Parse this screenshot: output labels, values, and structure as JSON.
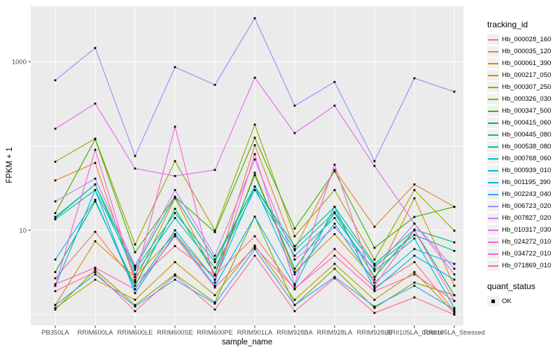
{
  "figure": {
    "background": "#FFFFFF",
    "panel_background": "#EBEBEB",
    "gridline_color": "#FFFFFF",
    "tick_text_color": "#4D4D4D",
    "tick_mark_color": "#333333",
    "point_color": "#000000"
  },
  "axes": {
    "x": {
      "label": "sample_name",
      "categories": [
        "PB350LA",
        "RRIM600LA",
        "RRIM600LE",
        "RRIM600SE",
        "RRIM600PE",
        "RRIM901LA",
        "RRIM928BA",
        "RRIM928LA",
        "RRIM928LE",
        "RRII105LA_Control",
        "RRII105LA_Stressed"
      ]
    },
    "y": {
      "label": "FPKM + 1",
      "scale": "log10",
      "tick_labels": [
        "10",
        "1000"
      ],
      "tick_values": [
        10,
        1000
      ],
      "gridline_values": [
        1,
        10,
        100,
        1000
      ]
    }
  },
  "legend": {
    "tracking_title": "tracking_id",
    "quant_title": "quant_status",
    "quant_items": [
      {
        "label": "OK",
        "shape": "square",
        "color": "#000000"
      }
    ]
  },
  "chart_data": {
    "type": "line",
    "xlabel": "sample_name",
    "ylabel": "FPKM + 1",
    "yscale": "log10",
    "ylim": [
      0.85,
      4500
    ],
    "yticks": [
      10,
      1000
    ],
    "grid": true,
    "legend_position": "right",
    "point_marker": {
      "shape": "square",
      "color": "#000000",
      "status_label": "OK"
    },
    "categories": [
      "PB350LA",
      "RRIM600LA",
      "RRIM600LE",
      "RRIM600SE",
      "RRIM600PE",
      "RRIM901LA",
      "RRIM928BA",
      "RRIM928LA",
      "RRIM928LE",
      "RRII105LA_Control",
      "RRII105LA_Stressed"
    ],
    "series": [
      {
        "name": "Hb_000028_160",
        "color": "#F8766D",
        "values": [
          2.7,
          9.6,
          2.4,
          6.5,
          2.9,
          8.5,
          2.0,
          6.0,
          2.1,
          4.2,
          1.1
        ]
      },
      {
        "name": "Hb_000035_120",
        "color": "#EA8331",
        "values": [
          39,
          63,
          2.5,
          24,
          3.0,
          102,
          6.0,
          52,
          11,
          35,
          19
        ]
      },
      {
        "name": "Hb_000061_390",
        "color": "#D89000",
        "values": [
          1.3,
          7.4,
          2.8,
          9.0,
          2.6,
          48,
          3.2,
          9.0,
          2.6,
          24,
          2.2
        ]
      },
      {
        "name": "Hb_000217_050",
        "color": "#C09B00",
        "values": [
          1.2,
          2.6,
          1.5,
          4.2,
          1.7,
          6.6,
          1.5,
          4.0,
          1.5,
          3.2,
          1.05
        ]
      },
      {
        "name": "Hb_000307_250",
        "color": "#A3A500",
        "values": [
          65,
          122,
          6.8,
          66,
          10,
          179,
          8.5,
          30,
          4.5,
          30,
          9.9
        ]
      },
      {
        "name": "Hb_000326_030",
        "color": "#7CAE00",
        "values": [
          1.15,
          3.4,
          1.3,
          3.0,
          1.4,
          14.5,
          1.3,
          3.5,
          1.2,
          2.4,
          1.7
        ]
      },
      {
        "name": "Hb_000347_500",
        "color": "#39B600",
        "values": [
          16,
          120,
          5.5,
          25,
          9.5,
          125,
          10.5,
          50,
          6.2,
          14.4,
          19
        ]
      },
      {
        "name": "Hb_000415_060",
        "color": "#00BB4E",
        "values": [
          3.2,
          22,
          2.2,
          18,
          3.0,
          45,
          3.5,
          16,
          2.8,
          10,
          1.7
        ]
      },
      {
        "name": "Hb_000445_080",
        "color": "#00BF7D",
        "values": [
          14,
          35,
          3.6,
          25,
          4.5,
          33,
          6.5,
          19,
          4.0,
          10.2,
          7.2
        ]
      },
      {
        "name": "Hb_000538_080",
        "color": "#00C1A3",
        "values": [
          13.5,
          30,
          3.4,
          16,
          4.2,
          33,
          5.8,
          16.4,
          3.8,
          8.8,
          5.7
        ]
      },
      {
        "name": "Hb_000768_060",
        "color": "#00BFC4",
        "values": [
          14.4,
          35,
          3.0,
          14,
          3.6,
          30,
          5.0,
          14,
          3.3,
          8.0,
          1.2
        ]
      },
      {
        "name": "Hb_000939_010",
        "color": "#00BAE0",
        "values": [
          4.5,
          23,
          2.0,
          10,
          2.6,
          33,
          3.0,
          12,
          2.4,
          6.0,
          4.0
        ]
      },
      {
        "name": "Hb_001195_390",
        "color": "#00B0F6",
        "values": [
          2.2,
          30,
          1.8,
          9.0,
          2.2,
          14.5,
          2.2,
          19,
          2.0,
          5.0,
          2.6
        ]
      },
      {
        "name": "Hb_002243_040",
        "color": "#35A2FF",
        "values": [
          1.3,
          3.0,
          1.25,
          2.6,
          1.35,
          6.0,
          1.3,
          2.8,
          1.25,
          2.2,
          1.15
        ]
      },
      {
        "name": "Hb_006723_020",
        "color": "#9590FF",
        "values": [
          600,
          1450,
          76,
          860,
          530,
          3270,
          300,
          574,
          66,
          634,
          440
        ]
      },
      {
        "name": "Hb_007827_020",
        "color": "#C77CFF",
        "values": [
          22,
          41,
          3.8,
          30,
          5.0,
          69,
          4.5,
          10.8,
          3.5,
          12,
          3.0
        ]
      },
      {
        "name": "Hb_010317_030",
        "color": "#E76BF3",
        "values": [
          160,
          318,
          54,
          44,
          52,
          644,
          142,
          300,
          58,
          12,
          3.5
        ]
      },
      {
        "name": "Hb_024272_010",
        "color": "#FA62DB",
        "values": [
          2.2,
          90,
          2.6,
          169,
          2.4,
          80,
          2.3,
          60,
          2.2,
          10,
          1.45
        ]
      },
      {
        "name": "Hb_034722_010",
        "color": "#FF62BC",
        "values": [
          2.3,
          3.6,
          2.0,
          8.5,
          2.1,
          6.3,
          2.05,
          5.0,
          1.9,
          3.0,
          1.45
        ]
      },
      {
        "name": "Hb_071869_010",
        "color": "#FF6A98",
        "values": [
          1.9,
          3.2,
          1.1,
          2.9,
          1.15,
          5.0,
          1.1,
          2.7,
          1.05,
          1.6,
          1.0
        ]
      }
    ]
  }
}
